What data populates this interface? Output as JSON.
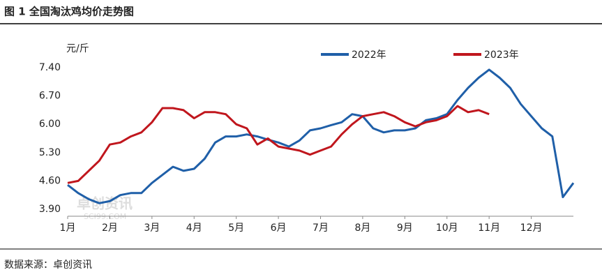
{
  "header": {
    "title": "图 1 全国淘汰鸡均价走势图"
  },
  "chart_data": {
    "type": "line",
    "y_label": "元/斤",
    "watermark": "卓创资讯",
    "watermark_sub": "SCI99.COM",
    "x": [
      1,
      1.25,
      1.5,
      1.75,
      2,
      2.25,
      2.5,
      2.75,
      3,
      3.25,
      3.5,
      3.75,
      4,
      4.25,
      4.5,
      4.75,
      5,
      5.25,
      5.5,
      5.75,
      6,
      6.25,
      6.5,
      6.75,
      7,
      7.25,
      7.5,
      7.75,
      8,
      8.25,
      8.5,
      8.75,
      9,
      9.25,
      9.5,
      9.75,
      10,
      10.25,
      10.5,
      10.75,
      11,
      11.25,
      11.5,
      11.75,
      12,
      12.25,
      12.5,
      12.75,
      13
    ],
    "series": [
      {
        "name": "2022年",
        "color": "#1f5fa8",
        "values": [
          4.5,
          4.3,
          4.15,
          4.05,
          4.1,
          4.25,
          4.3,
          4.3,
          4.55,
          4.75,
          4.95,
          4.85,
          4.9,
          5.15,
          5.55,
          5.7,
          5.7,
          5.75,
          5.7,
          5.62,
          5.55,
          5.45,
          5.6,
          5.85,
          5.9,
          5.98,
          6.05,
          6.25,
          6.2,
          5.9,
          5.8,
          5.85,
          5.85,
          5.9,
          6.1,
          6.15,
          6.25,
          6.6,
          6.9,
          7.15,
          7.35,
          7.15,
          6.9,
          6.5,
          6.2,
          5.9,
          5.7,
          4.2,
          4.55
        ]
      },
      {
        "name": "2023年",
        "color": "#c0161d",
        "values": [
          4.55,
          4.6,
          4.85,
          5.1,
          5.5,
          5.55,
          5.7,
          5.8,
          6.05,
          6.4,
          6.4,
          6.35,
          6.15,
          6.3,
          6.3,
          6.25,
          6.0,
          5.9,
          5.5,
          5.65,
          5.45,
          5.4,
          5.35,
          5.25,
          5.35,
          5.45,
          5.75,
          6.0,
          6.2,
          6.25,
          6.3,
          6.2,
          6.05,
          5.95,
          6.05,
          6.1,
          6.2,
          6.45,
          6.3,
          6.35,
          6.25,
          null,
          null,
          null,
          null,
          null,
          null,
          null,
          null
        ]
      }
    ],
    "xlim": [
      1,
      13
    ],
    "xticks": [
      {
        "value": 1,
        "label": "1月"
      },
      {
        "value": 2,
        "label": "2月"
      },
      {
        "value": 3,
        "label": "3月"
      },
      {
        "value": 4,
        "label": "4月"
      },
      {
        "value": 5,
        "label": "5月"
      },
      {
        "value": 6,
        "label": "6月"
      },
      {
        "value": 7,
        "label": "7月"
      },
      {
        "value": 8,
        "label": "8月"
      },
      {
        "value": 9,
        "label": "9月"
      },
      {
        "value": 10,
        "label": "10月"
      },
      {
        "value": 11,
        "label": "11月"
      },
      {
        "value": 12,
        "label": "12月"
      }
    ],
    "ylim": [
      3.9,
      7.4
    ],
    "yticks": [
      {
        "value": 3.9,
        "label": "3.90"
      },
      {
        "value": 4.6,
        "label": "4.60"
      },
      {
        "value": 5.3,
        "label": "5.30"
      },
      {
        "value": 6,
        "label": "6.00"
      },
      {
        "value": 6.7,
        "label": "6.70"
      },
      {
        "value": 7.4,
        "label": "7.40"
      }
    ],
    "grid": false,
    "legend": "top"
  },
  "footer": {
    "source": "数据来源：卓创资讯"
  }
}
